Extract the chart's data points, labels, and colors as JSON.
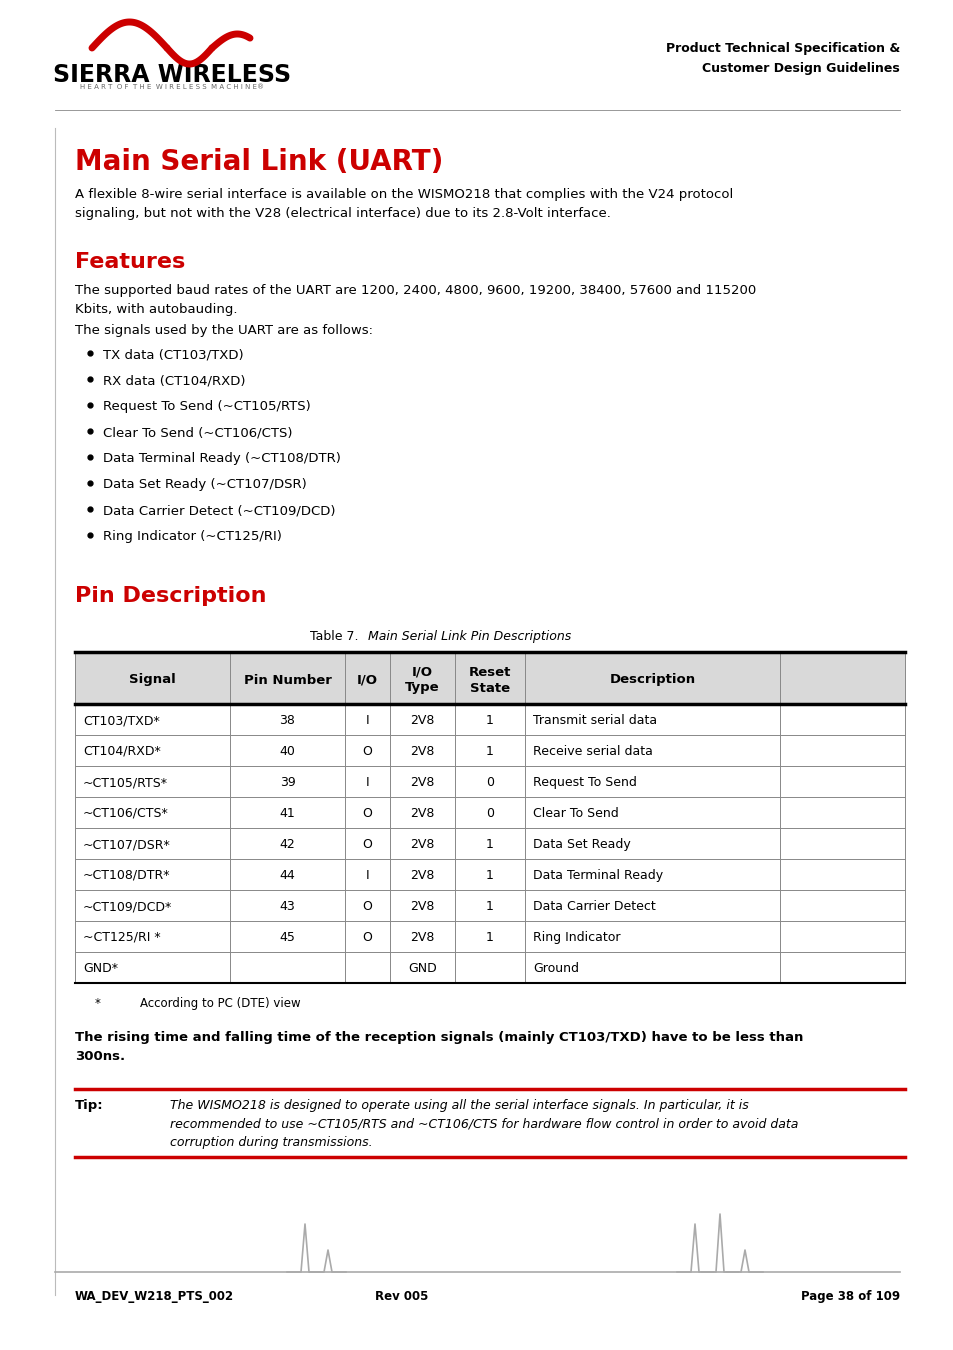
{
  "page_bg": "#ffffff",
  "header_text_right": "Product Technical Specification &\nCustomer Design Guidelines",
  "main_title": "Main Serial Link (UART)",
  "main_title_color": "#cc0000",
  "intro_text": "A flexible 8-wire serial interface is available on the WISMO218 that complies with the V24 protocol\nsignaling, but not with the V28 (electrical interface) due to its 2.8-Volt interface.",
  "features_title": "Features",
  "features_title_color": "#cc0000",
  "features_intro": "The supported baud rates of the UART are 1200, 2400, 4800, 9600, 19200, 38400, 57600 and 115200\nKbits, with autobauding.",
  "features_intro2": "The signals used by the UART are as follows:",
  "bullet_items": [
    "TX data (CT103/TXD)",
    "RX data (CT104/RXD)",
    "Request To Send (~CT105/RTS)",
    "Clear To Send (~CT106/CTS)",
    "Data Terminal Ready (~CT108/DTR)",
    "Data Set Ready (~CT107/DSR)",
    "Data Carrier Detect (~CT109/DCD)",
    "Ring Indicator (~CT125/RI)"
  ],
  "pin_desc_title": "Pin Description",
  "pin_desc_title_color": "#cc0000",
  "table_caption_bold": "Table 7.",
  "table_caption_italic": "    Main Serial Link Pin Descriptions",
  "table_headers": [
    "Signal",
    "Pin Number",
    "I/O",
    "I/O\nType",
    "Reset\nState",
    "Description"
  ],
  "table_header_bg": "#d9d9d9",
  "table_rows": [
    [
      "CT103/TXD*",
      "38",
      "I",
      "2V8",
      "1",
      "Transmit serial data"
    ],
    [
      "CT104/RXD*",
      "40",
      "O",
      "2V8",
      "1",
      "Receive serial data"
    ],
    [
      "~CT105/RTS*",
      "39",
      "I",
      "2V8",
      "0",
      "Request To Send"
    ],
    [
      "~CT106/CTS*",
      "41",
      "O",
      "2V8",
      "0",
      "Clear To Send"
    ],
    [
      "~CT107/DSR*",
      "42",
      "O",
      "2V8",
      "1",
      "Data Set Ready"
    ],
    [
      "~CT108/DTR*",
      "44",
      "I",
      "2V8",
      "1",
      "Data Terminal Ready"
    ],
    [
      "~CT109/DCD*",
      "43",
      "O",
      "2V8",
      "1",
      "Data Carrier Detect"
    ],
    [
      "~CT125/RI *",
      "45",
      "O",
      "2V8",
      "1",
      "Ring Indicator"
    ],
    [
      "GND*",
      "",
      "",
      "GND",
      "",
      "Ground"
    ]
  ],
  "footnote_star": "*",
  "footnote_text": "According to PC (DTE) view",
  "rising_text": "The rising time and falling time of the reception signals (mainly CT103/TXD) have to be less than\n300ns.",
  "tip_label": "Tip:",
  "tip_text": "The WISMO218 is designed to operate using all the serial interface signals. In particular, it is\nrecommended to use ~CT105/RTS and ~CT106/CTS for hardware flow control in order to avoid data\ncorruption during transmissions.",
  "footer_left": "WA_DEV_W218_PTS_002",
  "footer_center": "Rev 005",
  "footer_right": "Page 38 of 109",
  "red_line_color": "#cc0000",
  "gray_line_color": "#aaaaaa",
  "table_line_dark": "#000000",
  "table_line_light": "#888888"
}
